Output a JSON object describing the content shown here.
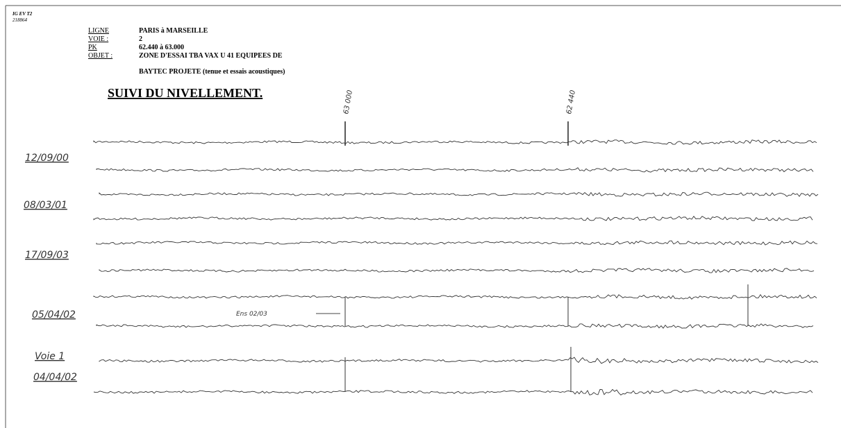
{
  "header": {
    "ref": [
      "IG EV T2",
      "218864"
    ],
    "fields": [
      {
        "label": "LIGNE",
        "value": "PARIS à MARSEILLE"
      },
      {
        "label": "VOIE :",
        "value": "2"
      },
      {
        "label": "PK",
        "value": "62.440 à 63.000"
      },
      {
        "label": "OBJET :",
        "value": "ZONE D'ESSAI TBA VAX U 41 EQUIPEES DE"
      }
    ],
    "value_continuation": "BAYTEC PROJETE (tenue et essais acoustiques)"
  },
  "title": "SUIVI DU NIVELLEMENT.",
  "markers": [
    "63 000",
    "62 440"
  ],
  "dates": [
    "12/09/00",
    "08/03/01",
    "17/09/03",
    "05/04/02",
    "Voie 1",
    "04/04/02"
  ],
  "annotation": "Ens 02/03"
}
